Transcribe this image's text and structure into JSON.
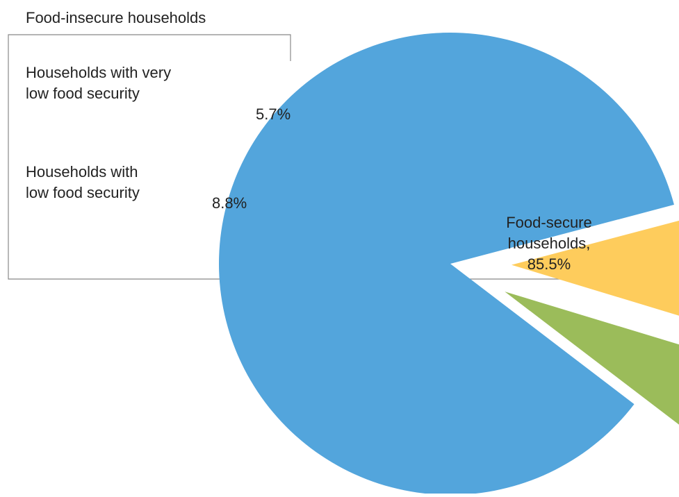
{
  "chart_data": {
    "type": "pie",
    "title": "",
    "group_label": "Food-insecure households",
    "slices": [
      {
        "name": "Food-secure households",
        "value": 85.5,
        "value_label": "85.5%",
        "label_lines": [
          "Food-secure",
          "households,",
          "85.5%"
        ],
        "color": "#53a5dc"
      },
      {
        "name": "Households with low food security",
        "value": 8.8,
        "value_label": "8.8%",
        "label_lines": [
          "Households with",
          "low food security"
        ],
        "color": "#fecc5c"
      },
      {
        "name": "Households with very low food security",
        "value": 5.7,
        "value_label": "5.7%",
        "label_lines": [
          "Households with very",
          "low food security"
        ],
        "color": "#9bbc5a"
      }
    ]
  }
}
